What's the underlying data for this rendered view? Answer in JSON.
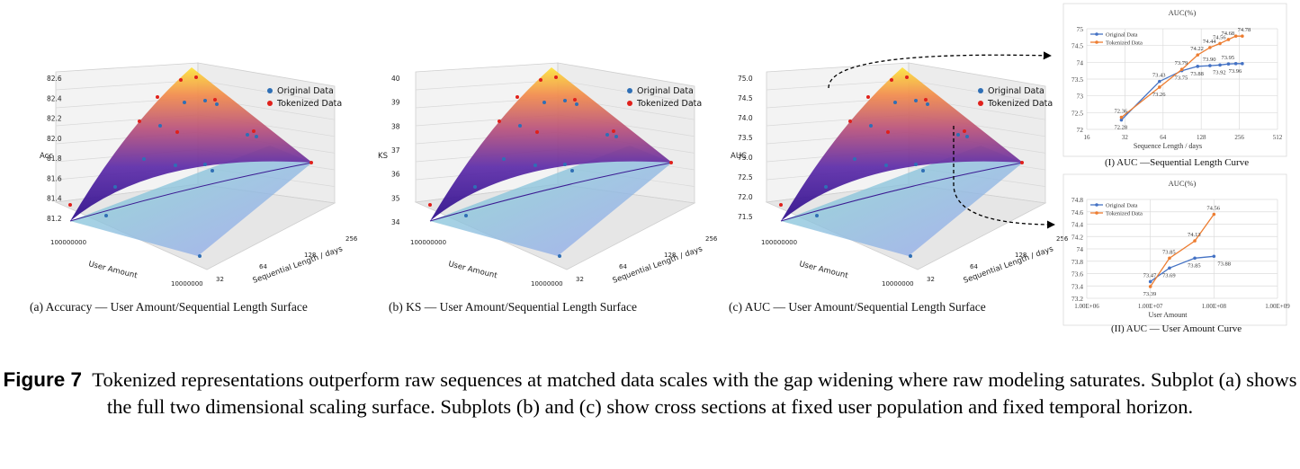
{
  "surfaces": [
    {
      "zlabel": "Acc",
      "zticks": [
        "81.2",
        "81.4",
        "81.6",
        "81.8",
        "82.0",
        "82.2",
        "82.4",
        "82.6"
      ],
      "x_ticks": [
        "100000000",
        "10000000"
      ],
      "x_label": "User Amount",
      "y_ticks": [
        "32",
        "64",
        "128",
        "256"
      ],
      "y_label": "Sequential Length / days",
      "legend": [
        "Original Data",
        "Tokenized Data"
      ],
      "caption": "(a) Accuracy — User Amount/Sequential Length Surface"
    },
    {
      "zlabel": "KS",
      "zticks": [
        "34",
        "35",
        "36",
        "37",
        "38",
        "39",
        "40"
      ],
      "x_ticks": [
        "100000000",
        "10000000"
      ],
      "x_label": "User Amount",
      "y_ticks": [
        "32",
        "64",
        "128",
        "256"
      ],
      "y_label": "Sequential Length / days",
      "legend": [
        "Original Data",
        "Tokenized Data"
      ],
      "caption": "(b) KS — User Amount/Sequential Length Surface"
    },
    {
      "zlabel": "AUC",
      "zticks": [
        "71.5",
        "72.0",
        "72.5",
        "73.0",
        "73.5",
        "74.0",
        "74.5",
        "75.0"
      ],
      "x_ticks": [
        "100000000",
        "10000000"
      ],
      "x_label": "User Amount",
      "y_ticks": [
        "32",
        "64",
        "128",
        "256"
      ],
      "y_label": "Sequential Length / days",
      "legend": [
        "Original Data",
        "Tokenized Data"
      ],
      "caption": "(c) AUC — User Amount/Sequential Length Surface"
    }
  ],
  "chart_data": [
    {
      "type": "line",
      "title": "AUC(%)",
      "xlabel": "Sequence Length / days",
      "x_scale": "log2",
      "x_ticks": [
        "16",
        "32",
        "64",
        "128",
        "256",
        "512"
      ],
      "xlim": [
        16,
        512
      ],
      "ylim": [
        72,
        75
      ],
      "y_ticks": [
        "72",
        "72.5",
        "73",
        "73.5",
        "74",
        "74.5",
        "75"
      ],
      "grid": true,
      "legend": "top-left",
      "x": [
        30,
        60,
        90,
        120,
        150,
        180,
        210,
        240,
        270
      ],
      "series": [
        {
          "name": "Original Data",
          "color": "#4472c4",
          "values": [
            72.28,
            73.43,
            73.75,
            73.88,
            73.9,
            73.92,
            73.95,
            73.96,
            73.96
          ]
        },
        {
          "name": "Tokenized Data",
          "color": "#ed7d31",
          "values": [
            72.36,
            73.26,
            73.79,
            74.22,
            74.44,
            74.56,
            74.68,
            74.78,
            74.78
          ]
        }
      ],
      "labels": [
        {
          "text": "72.36",
          "s": 1,
          "i": 0,
          "pos": "above"
        },
        {
          "text": "72.28",
          "s": 0,
          "i": 0,
          "pos": "below"
        },
        {
          "text": "73.43",
          "s": 0,
          "i": 1,
          "pos": "above"
        },
        {
          "text": "73.26",
          "s": 1,
          "i": 1,
          "pos": "below"
        },
        {
          "text": "73.79",
          "s": 1,
          "i": 2,
          "pos": "above"
        },
        {
          "text": "73.75",
          "s": 0,
          "i": 2,
          "pos": "below"
        },
        {
          "text": "74.22",
          "s": 1,
          "i": 3,
          "pos": "above"
        },
        {
          "text": "73.88",
          "s": 0,
          "i": 3,
          "pos": "below"
        },
        {
          "text": "74.44",
          "s": 1,
          "i": 4,
          "pos": "above"
        },
        {
          "text": "73.90",
          "s": 0,
          "i": 4,
          "pos": "above"
        },
        {
          "text": "73.92",
          "s": 0,
          "i": 5,
          "pos": "below"
        },
        {
          "text": "74.56",
          "s": 1,
          "i": 5,
          "pos": "above"
        },
        {
          "text": "74.68",
          "s": 1,
          "i": 6,
          "pos": "above"
        },
        {
          "text": "73.95",
          "s": 0,
          "i": 6,
          "pos": "above"
        },
        {
          "text": "74.78",
          "s": 1,
          "i": 7,
          "pos": "aboveRight"
        },
        {
          "text": "73.96",
          "s": 0,
          "i": 7,
          "pos": "below"
        }
      ],
      "caption": "(I) AUC —Sequential Length Curve"
    },
    {
      "type": "line",
      "title": "AUC(%)",
      "xlabel": "User Amount",
      "x_scale": "log10",
      "x_ticks": [
        "1.00E+06",
        "1.00E+07",
        "1.00E+08",
        "1.00E+09"
      ],
      "xlim": [
        1000000,
        1000000000
      ],
      "ylim": [
        73.2,
        74.8
      ],
      "y_ticks": [
        "73.2",
        "73.4",
        "73.6",
        "73.8",
        "74",
        "74.2",
        "74.4",
        "74.6",
        "74.8"
      ],
      "grid": true,
      "legend": "top-left",
      "x": [
        10000000,
        20000000,
        50000000,
        100000000
      ],
      "series": [
        {
          "name": "Original Data",
          "color": "#4472c4",
          "values": [
            73.47,
            73.69,
            73.85,
            73.88
          ]
        },
        {
          "name": "Tokenized Data",
          "color": "#ed7d31",
          "values": [
            73.39,
            73.85,
            74.13,
            74.56
          ]
        }
      ],
      "labels": [
        {
          "text": "73.47",
          "s": 0,
          "i": 0,
          "pos": "above"
        },
        {
          "text": "73.39",
          "s": 1,
          "i": 0,
          "pos": "below"
        },
        {
          "text": "73.69",
          "s": 0,
          "i": 1,
          "pos": "below"
        },
        {
          "text": "73.85",
          "s": 1,
          "i": 1,
          "pos": "above"
        },
        {
          "text": "73.85",
          "s": 0,
          "i": 2,
          "pos": "below"
        },
        {
          "text": "74.13",
          "s": 1,
          "i": 2,
          "pos": "above"
        },
        {
          "text": "73.88",
          "s": 0,
          "i": 3,
          "pos": "belowRight"
        },
        {
          "text": "74.56",
          "s": 1,
          "i": 3,
          "pos": "above"
        }
      ],
      "caption": "(II) AUC — User Amount Curve"
    }
  ],
  "caption": {
    "label": "Figure 7",
    "text": "Tokenized representations outperform raw sequences at matched data scales with the gap widening where raw modeling saturates. Subplot (a) shows the full two dimensional scaling surface. Subplots (b) and (c) show cross sections at fixed user population and fixed temporal horizon."
  },
  "colors": {
    "original": "#2f6fb5",
    "tokenized": "#e0201b"
  }
}
